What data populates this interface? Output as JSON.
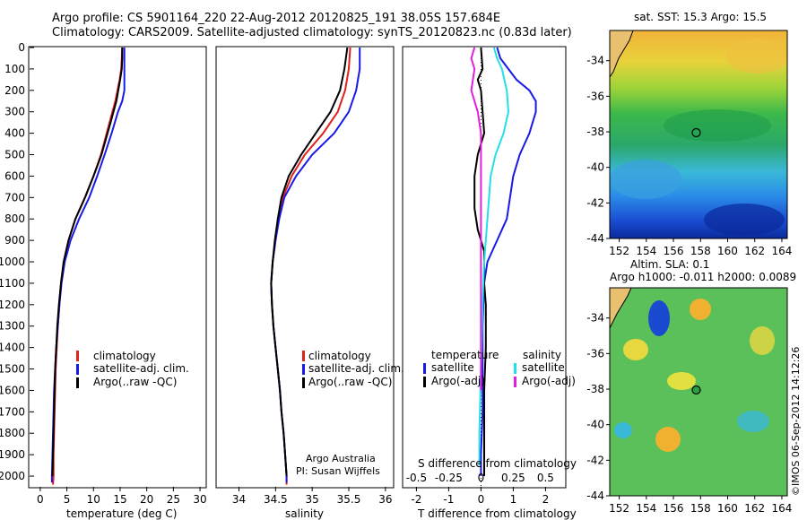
{
  "header": {
    "line1": "Argo profile: CS 5901164_220 22-Aug-2012 20120825_191 38.05S 157.684E",
    "line2": "Climatology: CARS2009. Satellite-adjusted climatology: synTS_20120823.nc (0.83d later)"
  },
  "colors": {
    "climatology": "#e0201a",
    "satellite": "#1a1ae8",
    "argo": "#000000",
    "salinity_satellite": "#22e0e8",
    "salinity_argo": "#e020e0"
  },
  "chart_data": [
    {
      "type": "line",
      "panel": "temperature",
      "xlabel": "temperature (deg C)",
      "xlim": [
        -2,
        31
      ],
      "xticks": [
        "0",
        "5",
        "10",
        "15",
        "20",
        "25",
        "30"
      ],
      "ylim": [
        2050,
        0
      ],
      "yticks": [
        "0",
        "100",
        "200",
        "300",
        "400",
        "500",
        "600",
        "700",
        "800",
        "900",
        "1000",
        "1100",
        "1200",
        "1300",
        "1400",
        "1500",
        "1600",
        "1700",
        "1800",
        "1900",
        "2000"
      ],
      "legend": [
        "climatology",
        "satellite-adj. clim.",
        "Argo(..raw -QC)"
      ],
      "legend_position": "lower-right",
      "series": [
        {
          "name": "climatology",
          "color": "#e0201a",
          "points": [
            [
              15.4,
              0
            ],
            [
              15.3,
              50
            ],
            [
              15.2,
              100
            ],
            [
              14.9,
              150
            ],
            [
              14.1,
              250
            ],
            [
              13.0,
              350
            ],
            [
              11.4,
              500
            ],
            [
              10.0,
              600
            ],
            [
              8.4,
              700
            ],
            [
              6.6,
              800
            ],
            [
              5.3,
              900
            ],
            [
              4.4,
              1000
            ],
            [
              3.9,
              1100
            ],
            [
              3.6,
              1200
            ],
            [
              3.3,
              1300
            ],
            [
              3.1,
              1400
            ],
            [
              2.9,
              1500
            ],
            [
              2.8,
              1600
            ],
            [
              2.7,
              1700
            ],
            [
              2.6,
              1800
            ],
            [
              2.5,
              1900
            ],
            [
              2.5,
              2000
            ],
            [
              2.4,
              2040
            ]
          ]
        },
        {
          "name": "satellite-adj. clim.",
          "color": "#1a1ae8",
          "points": [
            [
              15.8,
              0
            ],
            [
              15.8,
              100
            ],
            [
              15.8,
              200
            ],
            [
              15.4,
              250
            ],
            [
              14.6,
              300
            ],
            [
              13.4,
              400
            ],
            [
              12.1,
              500
            ],
            [
              10.7,
              600
            ],
            [
              9.2,
              700
            ],
            [
              7.3,
              800
            ],
            [
              5.7,
              900
            ],
            [
              4.6,
              1000
            ],
            [
              4.0,
              1100
            ],
            [
              3.6,
              1200
            ],
            [
              3.3,
              1300
            ],
            [
              3.0,
              1400
            ],
            [
              2.8,
              1500
            ],
            [
              2.6,
              1600
            ],
            [
              2.5,
              1700
            ],
            [
              2.4,
              1800
            ],
            [
              2.3,
              1900
            ],
            [
              2.2,
              2000
            ],
            [
              2.2,
              2030
            ]
          ]
        },
        {
          "name": "Argo(..raw -QC)",
          "color": "#000000",
          "points": [
            [
              15.4,
              0
            ],
            [
              15.4,
              50
            ],
            [
              15.3,
              100
            ],
            [
              15.0,
              150
            ],
            [
              14.3,
              250
            ],
            [
              13.2,
              350
            ],
            [
              11.5,
              500
            ],
            [
              10.0,
              600
            ],
            [
              8.4,
              700
            ],
            [
              6.6,
              800
            ],
            [
              5.3,
              900
            ],
            [
              4.4,
              1000
            ],
            [
              3.9,
              1100
            ],
            [
              3.5,
              1200
            ],
            [
              3.2,
              1300
            ],
            [
              3.0,
              1400
            ],
            [
              2.8,
              1500
            ],
            [
              2.7,
              1600
            ],
            [
              2.6,
              1700
            ],
            [
              2.5,
              1800
            ],
            [
              2.4,
              1900
            ],
            [
              2.3,
              2000
            ]
          ]
        }
      ]
    },
    {
      "type": "line",
      "panel": "salinity",
      "xlabel": "salinity",
      "xlim": [
        33.7,
        36.1
      ],
      "xticks": [
        "34",
        "34.5",
        "35",
        "35.5",
        "36"
      ],
      "ylim": [
        2050,
        0
      ],
      "legend": [
        "climatology",
        "satellite-adj. clim.",
        "Argo(..raw -QC)"
      ],
      "legend_position": "lower-right",
      "annotations": [
        "Argo Australia",
        "PI: Susan Wijffels"
      ],
      "series": [
        {
          "name": "climatology",
          "color": "#e0201a",
          "points": [
            [
              35.52,
              0
            ],
            [
              35.5,
              100
            ],
            [
              35.45,
              200
            ],
            [
              35.35,
              300
            ],
            [
              35.15,
              400
            ],
            [
              34.9,
              500
            ],
            [
              34.72,
              600
            ],
            [
              34.6,
              700
            ],
            [
              34.54,
              800
            ],
            [
              34.5,
              900
            ],
            [
              34.46,
              1000
            ],
            [
              34.44,
              1100
            ],
            [
              34.45,
              1200
            ],
            [
              34.47,
              1300
            ],
            [
              34.5,
              1400
            ],
            [
              34.53,
              1500
            ],
            [
              34.56,
              1600
            ],
            [
              34.58,
              1700
            ],
            [
              34.61,
              1800
            ],
            [
              34.63,
              1900
            ],
            [
              34.65,
              2000
            ],
            [
              34.65,
              2040
            ]
          ]
        },
        {
          "name": "satellite-adj. clim.",
          "color": "#1a1ae8",
          "points": [
            [
              35.65,
              0
            ],
            [
              35.65,
              100
            ],
            [
              35.6,
              200
            ],
            [
              35.5,
              300
            ],
            [
              35.3,
              400
            ],
            [
              35.0,
              500
            ],
            [
              34.78,
              600
            ],
            [
              34.62,
              700
            ],
            [
              34.55,
              800
            ],
            [
              34.5,
              900
            ],
            [
              34.46,
              1000
            ],
            [
              34.44,
              1100
            ],
            [
              34.45,
              1200
            ],
            [
              34.47,
              1300
            ],
            [
              34.5,
              1400
            ],
            [
              34.53,
              1500
            ],
            [
              34.56,
              1600
            ],
            [
              34.58,
              1700
            ],
            [
              34.61,
              1800
            ],
            [
              34.63,
              1900
            ],
            [
              34.65,
              2000
            ],
            [
              34.65,
              2030
            ]
          ]
        },
        {
          "name": "Argo(..raw -QC)",
          "color": "#000000",
          "points": [
            [
              35.48,
              0
            ],
            [
              35.44,
              100
            ],
            [
              35.38,
              200
            ],
            [
              35.25,
              300
            ],
            [
              35.05,
              400
            ],
            [
              34.85,
              500
            ],
            [
              34.68,
              600
            ],
            [
              34.58,
              700
            ],
            [
              34.53,
              800
            ],
            [
              34.49,
              900
            ],
            [
              34.46,
              1000
            ],
            [
              34.44,
              1100
            ],
            [
              34.45,
              1200
            ],
            [
              34.47,
              1300
            ],
            [
              34.5,
              1400
            ],
            [
              34.53,
              1500
            ],
            [
              34.56,
              1600
            ],
            [
              34.58,
              1700
            ],
            [
              34.61,
              1800
            ],
            [
              34.63,
              1900
            ],
            [
              34.65,
              2000
            ]
          ]
        }
      ]
    },
    {
      "type": "line",
      "panel": "differences",
      "xlabel": "T difference from climatology",
      "xlabel_top": "S difference from climatology",
      "xlim": [
        -2.4,
        2.6
      ],
      "xticks": [
        "-2",
        "-1",
        "0",
        "1",
        "2"
      ],
      "xticks_top": [
        "-0.5",
        "-0.25",
        "0",
        "0.25",
        "0.5"
      ],
      "ylim": [
        2050,
        0
      ],
      "legend": {
        "temperature": {
          "title": "temperature",
          "items": [
            "satellite",
            "Argo(-adj)"
          ]
        },
        "salinity": {
          "title": "salinity",
          "items": [
            "satellite",
            "Argo(-adj)"
          ]
        }
      },
      "series": [
        {
          "name": "temperature satellite",
          "color": "#1a1ae8",
          "points": [
            [
              0.5,
              0
            ],
            [
              0.6,
              50
            ],
            [
              1.1,
              150
            ],
            [
              1.5,
              200
            ],
            [
              1.7,
              250
            ],
            [
              1.7,
              300
            ],
            [
              1.5,
              400
            ],
            [
              1.2,
              500
            ],
            [
              1.0,
              600
            ],
            [
              0.9,
              700
            ],
            [
              0.8,
              800
            ],
            [
              0.5,
              900
            ],
            [
              0.2,
              1000
            ],
            [
              0.1,
              1100
            ],
            [
              0.05,
              1300
            ],
            [
              0.05,
              1500
            ],
            [
              0.05,
              1700
            ],
            [
              0.0,
              1900
            ],
            [
              0.0,
              2000
            ]
          ]
        },
        {
          "name": "temperature Argo(-adj)",
          "color": "#000000",
          "points": [
            [
              0.0,
              0
            ],
            [
              0.05,
              100
            ],
            [
              -0.1,
              150
            ],
            [
              0.0,
              200
            ],
            [
              0.05,
              300
            ],
            [
              0.1,
              400
            ],
            [
              -0.1,
              500
            ],
            [
              -0.2,
              600
            ],
            [
              -0.2,
              750
            ],
            [
              -0.1,
              850
            ],
            [
              0.1,
              950
            ],
            [
              0.1,
              1100
            ],
            [
              0.15,
              1200
            ],
            [
              0.15,
              1400
            ],
            [
              0.1,
              1600
            ],
            [
              0.1,
              1800
            ],
            [
              0.1,
              2000
            ]
          ]
        },
        {
          "name": "salinity satellite",
          "color": "#22e0e8",
          "points": [
            [
              0.4,
              0
            ],
            [
              0.5,
              50
            ],
            [
              0.65,
              100
            ],
            [
              0.8,
              200
            ],
            [
              0.85,
              300
            ],
            [
              0.7,
              400
            ],
            [
              0.45,
              500
            ],
            [
              0.3,
              600
            ],
            [
              0.2,
              800
            ],
            [
              0.1,
              1000
            ],
            [
              0.05,
              1200
            ],
            [
              0.0,
              1500
            ],
            [
              -0.05,
              1800
            ],
            [
              -0.05,
              1950
            ]
          ]
        },
        {
          "name": "salinity Argo(-adj)",
          "color": "#e020e0",
          "points": [
            [
              -0.2,
              0
            ],
            [
              -0.3,
              50
            ],
            [
              -0.2,
              100
            ],
            [
              -0.3,
              200
            ],
            [
              -0.2,
              250
            ],
            [
              -0.1,
              300
            ],
            [
              0.0,
              400
            ],
            [
              0.0,
              1400
            ],
            [
              0.0,
              1600
            ]
          ]
        }
      ]
    },
    {
      "type": "heatmap",
      "panel": "sst_map",
      "title": "sat. SST: 15.3 Argo: 15.5",
      "xticks": [
        "152",
        "154",
        "156",
        "158",
        "160",
        "162",
        "164"
      ],
      "yticks": [
        "-34",
        "-36",
        "-38",
        "-40",
        "-42",
        "-44"
      ],
      "xlim": [
        151.3,
        164.4
      ],
      "ylim": [
        -44,
        -32.3
      ],
      "marker": {
        "lon": 157.684,
        "lat": -38.05
      }
    },
    {
      "type": "heatmap",
      "panel": "sla_map",
      "title": "Altim. SLA: 0.1",
      "subtitle": "Argo h1000: -0.011 h2000: 0.0089",
      "xticks": [
        "152",
        "154",
        "156",
        "158",
        "160",
        "162",
        "164"
      ],
      "yticks": [
        "-34",
        "-36",
        "-38",
        "-40",
        "-42",
        "-44"
      ],
      "xlim": [
        151.3,
        164.4
      ],
      "ylim": [
        -44,
        -32.3
      ],
      "marker": {
        "lon": 157.684,
        "lat": -38.05
      }
    }
  ],
  "credit": "©IMOS 06-Sep-2012 14:12:26"
}
